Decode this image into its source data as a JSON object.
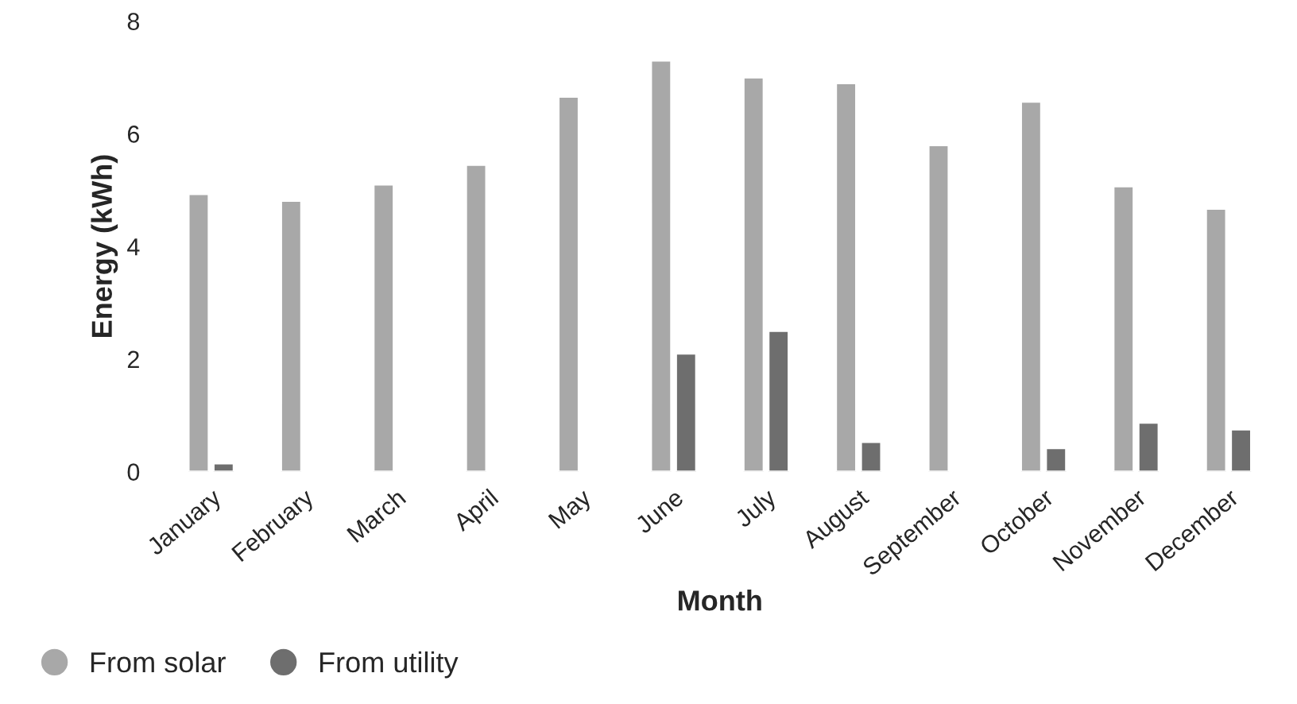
{
  "chart_data": {
    "type": "bar",
    "xlabel": "Month",
    "ylabel": "Energy (kWh)",
    "categories": [
      "January",
      "February",
      "March",
      "April",
      "May",
      "June",
      "July",
      "August",
      "September",
      "October",
      "November",
      "December"
    ],
    "series": [
      {
        "name": "From solar",
        "color": "#a8a8a8",
        "values": [
          4.93,
          4.81,
          5.1,
          5.45,
          6.66,
          7.3,
          7.0,
          6.9,
          5.8,
          6.57,
          5.07,
          4.67
        ]
      },
      {
        "name": "From utility",
        "color": "#6e6e6e",
        "values": [
          0.15,
          null,
          null,
          null,
          null,
          2.1,
          2.5,
          0.53,
          null,
          0.42,
          0.87,
          0.75
        ]
      }
    ],
    "ylim": [
      0,
      8
    ],
    "yticks": [
      0,
      2,
      4,
      6,
      8
    ],
    "grid": false,
    "legend": "bottom left"
  }
}
